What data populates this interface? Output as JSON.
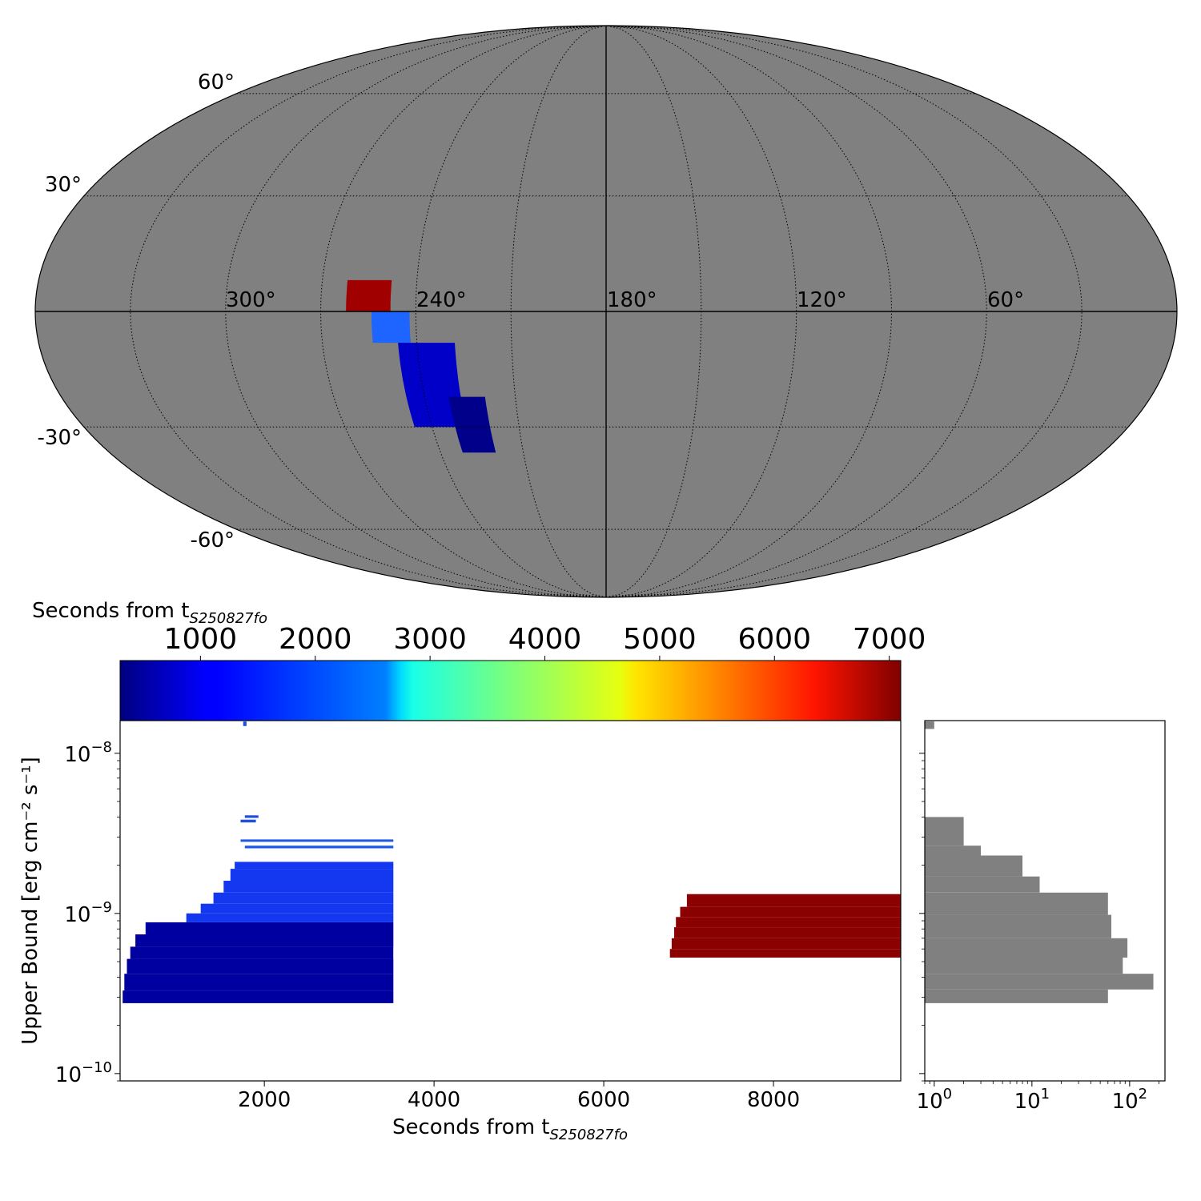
{
  "chart_data": [
    {
      "type": "sky-map",
      "projection": "mollweide",
      "background_color": "#808080",
      "longitude_labels": [
        "300°",
        "240°",
        "180°",
        "120°",
        "60°"
      ],
      "latitude_labels": [
        "60°",
        "30°",
        "-30°",
        "-60°"
      ],
      "regions": [
        {
          "color": "#a00000",
          "ra_range": [
            248,
            262
          ],
          "dec_range": [
            0,
            8
          ]
        },
        {
          "color": "#1e64ff",
          "ra_range": [
            242,
            254
          ],
          "dec_range": [
            -8,
            0
          ]
        },
        {
          "color": "#0000c8",
          "ra_range": [
            228,
            246
          ],
          "dec_range": [
            -30,
            -8
          ]
        },
        {
          "color": "#00008b",
          "ra_range": [
            220,
            232
          ],
          "dec_range": [
            -37,
            -22
          ]
        }
      ]
    },
    {
      "type": "colorbar",
      "label_prefix": "Seconds from t",
      "label_subscript": "S250827fo",
      "ticks": [
        "1000",
        "2000",
        "3000",
        "4000",
        "5000",
        "6000",
        "7000"
      ],
      "range": [
        300,
        7100
      ],
      "colormap": "jet"
    },
    {
      "type": "bar",
      "orientation": "horizontal-segments",
      "xlabel_prefix": "Seconds from t",
      "xlabel_subscript": "S250827fo",
      "ylabel": "Upper Bound [erg cm⁻² s⁻¹]",
      "xlim": [
        300,
        9500
      ],
      "ylim": [
        9e-11,
        1.6e-08
      ],
      "yscale": "log",
      "x_ticks": [
        "2000",
        "4000",
        "6000",
        "8000"
      ],
      "y_ticks": [
        {
          "base": "10",
          "exp": "−8"
        },
        {
          "base": "10",
          "exp": "−9"
        },
        {
          "base": "10",
          "exp": "−10"
        }
      ],
      "series": [
        {
          "group": "early",
          "color": "#0000a0",
          "x_end": 3520,
          "segments": [
            {
              "y_lo": 2.75e-10,
              "y_hi": 3.3e-10,
              "x_start": 330
            },
            {
              "y_lo": 3.3e-10,
              "y_hi": 4.2e-10,
              "x_start": 350
            },
            {
              "y_lo": 4.2e-10,
              "y_hi": 5.2e-10,
              "x_start": 380
            },
            {
              "y_lo": 5.2e-10,
              "y_hi": 6.2e-10,
              "x_start": 420
            },
            {
              "y_lo": 6.2e-10,
              "y_hi": 7.4e-10,
              "x_start": 480
            },
            {
              "y_lo": 7.4e-10,
              "y_hi": 8.8e-10,
              "x_start": 600
            }
          ]
        },
        {
          "group": "mid",
          "color": "#1438f0",
          "x_end": 3520,
          "segments": [
            {
              "y_lo": 8.8e-10,
              "y_hi": 1e-09,
              "x_start": 1080
            },
            {
              "y_lo": 1e-09,
              "y_hi": 1.15e-09,
              "x_start": 1250
            },
            {
              "y_lo": 1.15e-09,
              "y_hi": 1.35e-09,
              "x_start": 1400
            },
            {
              "y_lo": 1.35e-09,
              "y_hi": 1.6e-09,
              "x_start": 1520
            },
            {
              "y_lo": 1.6e-09,
              "y_hi": 1.9e-09,
              "x_start": 1600
            },
            {
              "y_lo": 1.9e-09,
              "y_hi": 2.1e-09,
              "x_start": 1650
            }
          ]
        },
        {
          "group": "late-early",
          "color": "#1e5ae6",
          "x_end": 3520,
          "segments": [
            {
              "y_lo": 2.55e-09,
              "y_hi": 2.65e-09,
              "x_start": 1770
            },
            {
              "y_lo": 2.8e-09,
              "y_hi": 2.9e-09,
              "x_start": 1720
            }
          ]
        },
        {
          "group": "outliers",
          "color": "#1e50dc",
          "x_end": null,
          "segments": [
            {
              "y_lo": 3.7e-09,
              "y_hi": 3.85e-09,
              "x_start": 1720,
              "x_stop": 1900
            },
            {
              "y_lo": 3.95e-09,
              "y_hi": 4.1e-09,
              "x_start": 1770,
              "x_stop": 1930
            },
            {
              "y_lo": 1.48e-08,
              "y_hi": 1.58e-08,
              "x_start": 1750,
              "x_stop": 1790
            }
          ]
        },
        {
          "group": "late",
          "color": "#8b0000",
          "x_end": 9500,
          "segments": [
            {
              "y_lo": 5.3e-10,
              "y_hi": 6e-10,
              "x_start": 6780
            },
            {
              "y_lo": 6e-10,
              "y_hi": 7e-10,
              "x_start": 6800
            },
            {
              "y_lo": 7e-10,
              "y_hi": 8.2e-10,
              "x_start": 6830
            },
            {
              "y_lo": 8.2e-10,
              "y_hi": 9.5e-10,
              "x_start": 6850
            },
            {
              "y_lo": 9.5e-10,
              "y_hi": 1.1e-09,
              "x_start": 6900
            },
            {
              "y_lo": 1.1e-09,
              "y_hi": 1.32e-09,
              "x_start": 6980
            }
          ]
        }
      ]
    },
    {
      "type": "bar",
      "orientation": "horizontal",
      "xscale": "log",
      "yscale": "log",
      "color": "#808080",
      "xlim": [
        0.8,
        230
      ],
      "x_ticks": [
        {
          "base": "10",
          "exp": "0"
        },
        {
          "base": "10",
          "exp": "1"
        },
        {
          "base": "10",
          "exp": "2"
        }
      ],
      "bins": [
        {
          "y_lo": 1.42e-08,
          "y_hi": 1.58e-08,
          "count": 1
        },
        {
          "y_lo": 2.65e-09,
          "y_hi": 4e-09,
          "count": 2
        },
        {
          "y_lo": 2.3e-09,
          "y_hi": 2.65e-09,
          "count": 3
        },
        {
          "y_lo": 1.7e-09,
          "y_hi": 2.3e-09,
          "count": 8
        },
        {
          "y_lo": 1.35e-09,
          "y_hi": 1.7e-09,
          "count": 12
        },
        {
          "y_lo": 9.8e-10,
          "y_hi": 1.35e-09,
          "count": 60
        },
        {
          "y_lo": 7e-10,
          "y_hi": 9.8e-10,
          "count": 65
        },
        {
          "y_lo": 5.3e-10,
          "y_hi": 7e-10,
          "count": 95
        },
        {
          "y_lo": 4.2e-10,
          "y_hi": 5.3e-10,
          "count": 85
        },
        {
          "y_lo": 3.35e-10,
          "y_hi": 4.2e-10,
          "count": 175
        },
        {
          "y_lo": 2.75e-10,
          "y_hi": 3.35e-10,
          "count": 60
        }
      ]
    }
  ]
}
